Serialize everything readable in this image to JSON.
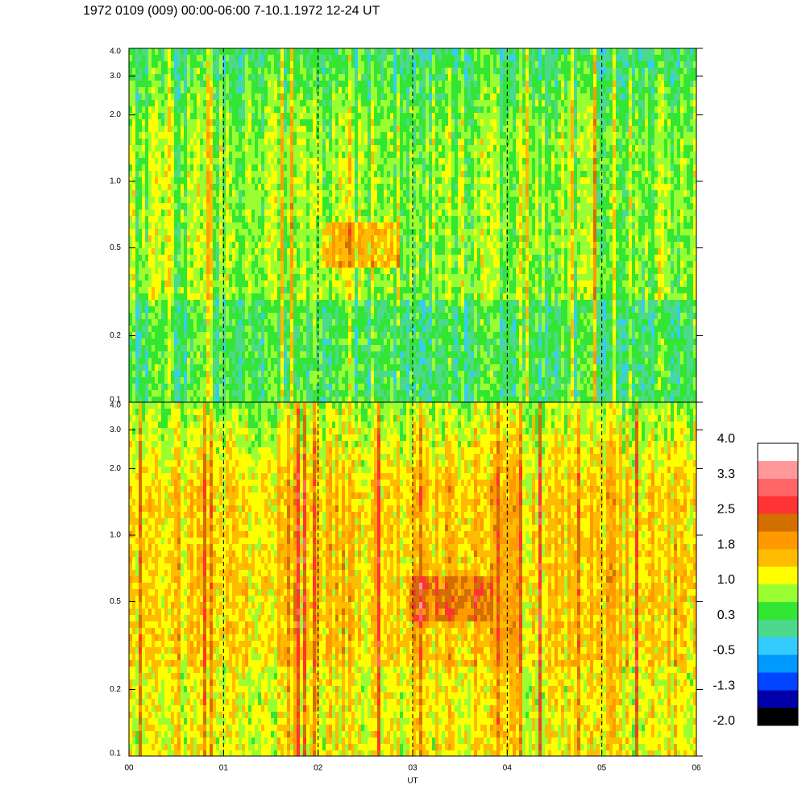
{
  "chart_data": {
    "type": "spectrogram",
    "title": "1972 0109 (009) 00:00-06:00 7-10.1.1972  12-24 UT",
    "xlabel": "UT",
    "xlim": [
      0,
      6
    ],
    "xticks": [
      {
        "value": 0,
        "label": "00"
      },
      {
        "value": 1,
        "label": "01"
      },
      {
        "value": 2,
        "label": "02"
      },
      {
        "value": 3,
        "label": "03"
      },
      {
        "value": 4,
        "label": "04"
      },
      {
        "value": 5,
        "label": "05"
      },
      {
        "value": 6,
        "label": "06"
      }
    ],
    "grid": "dashed",
    "log_y": true,
    "panels": [
      {
        "ylim": [
          0.1,
          4
        ],
        "yticks": [
          0.1,
          0.2,
          0.5,
          {
            "value": 1,
            "label": "1.0"
          },
          {
            "value": 2,
            "label": "2.0"
          },
          {
            "value": 3,
            "label": "3.0"
          },
          {
            "value": 4,
            "label": "4.0"
          }
        ]
      },
      {
        "ylim": [
          0.1,
          4
        ],
        "yticks": [
          0.1,
          0.2,
          0.5,
          {
            "value": 1,
            "label": "1.0"
          },
          {
            "value": 2,
            "label": "2.0"
          },
          {
            "value": 3,
            "label": "3.0"
          },
          {
            "value": 4,
            "label": "4.0"
          }
        ]
      }
    ],
    "colorbar": {
      "clim": [
        -2,
        4
      ],
      "colors": [
        "#ffffff",
        "#ff9999",
        "#ff6666",
        "#ff3333",
        "#d26f00",
        "#ff9900",
        "#ffbb00",
        "#ffff00",
        "#99ff33",
        "#33e633",
        "#4dd98c",
        "#33ccff",
        "#0099ff",
        "#0044ff",
        "#0000aa",
        "#000000"
      ],
      "ticks": [
        {
          "value": 4,
          "label": "4.0"
        },
        {
          "value": 3.25,
          "label": "3.3"
        },
        2.5,
        {
          "value": 1.75,
          "label": "1.8"
        },
        {
          "value": 1,
          "label": "1.0"
        },
        {
          "value": 0.25,
          "label": "0.3"
        },
        -0.5,
        {
          "value": -1.25,
          "label": "-1.3"
        },
        {
          "value": -2,
          "label": "-2.0"
        }
      ]
    }
  }
}
